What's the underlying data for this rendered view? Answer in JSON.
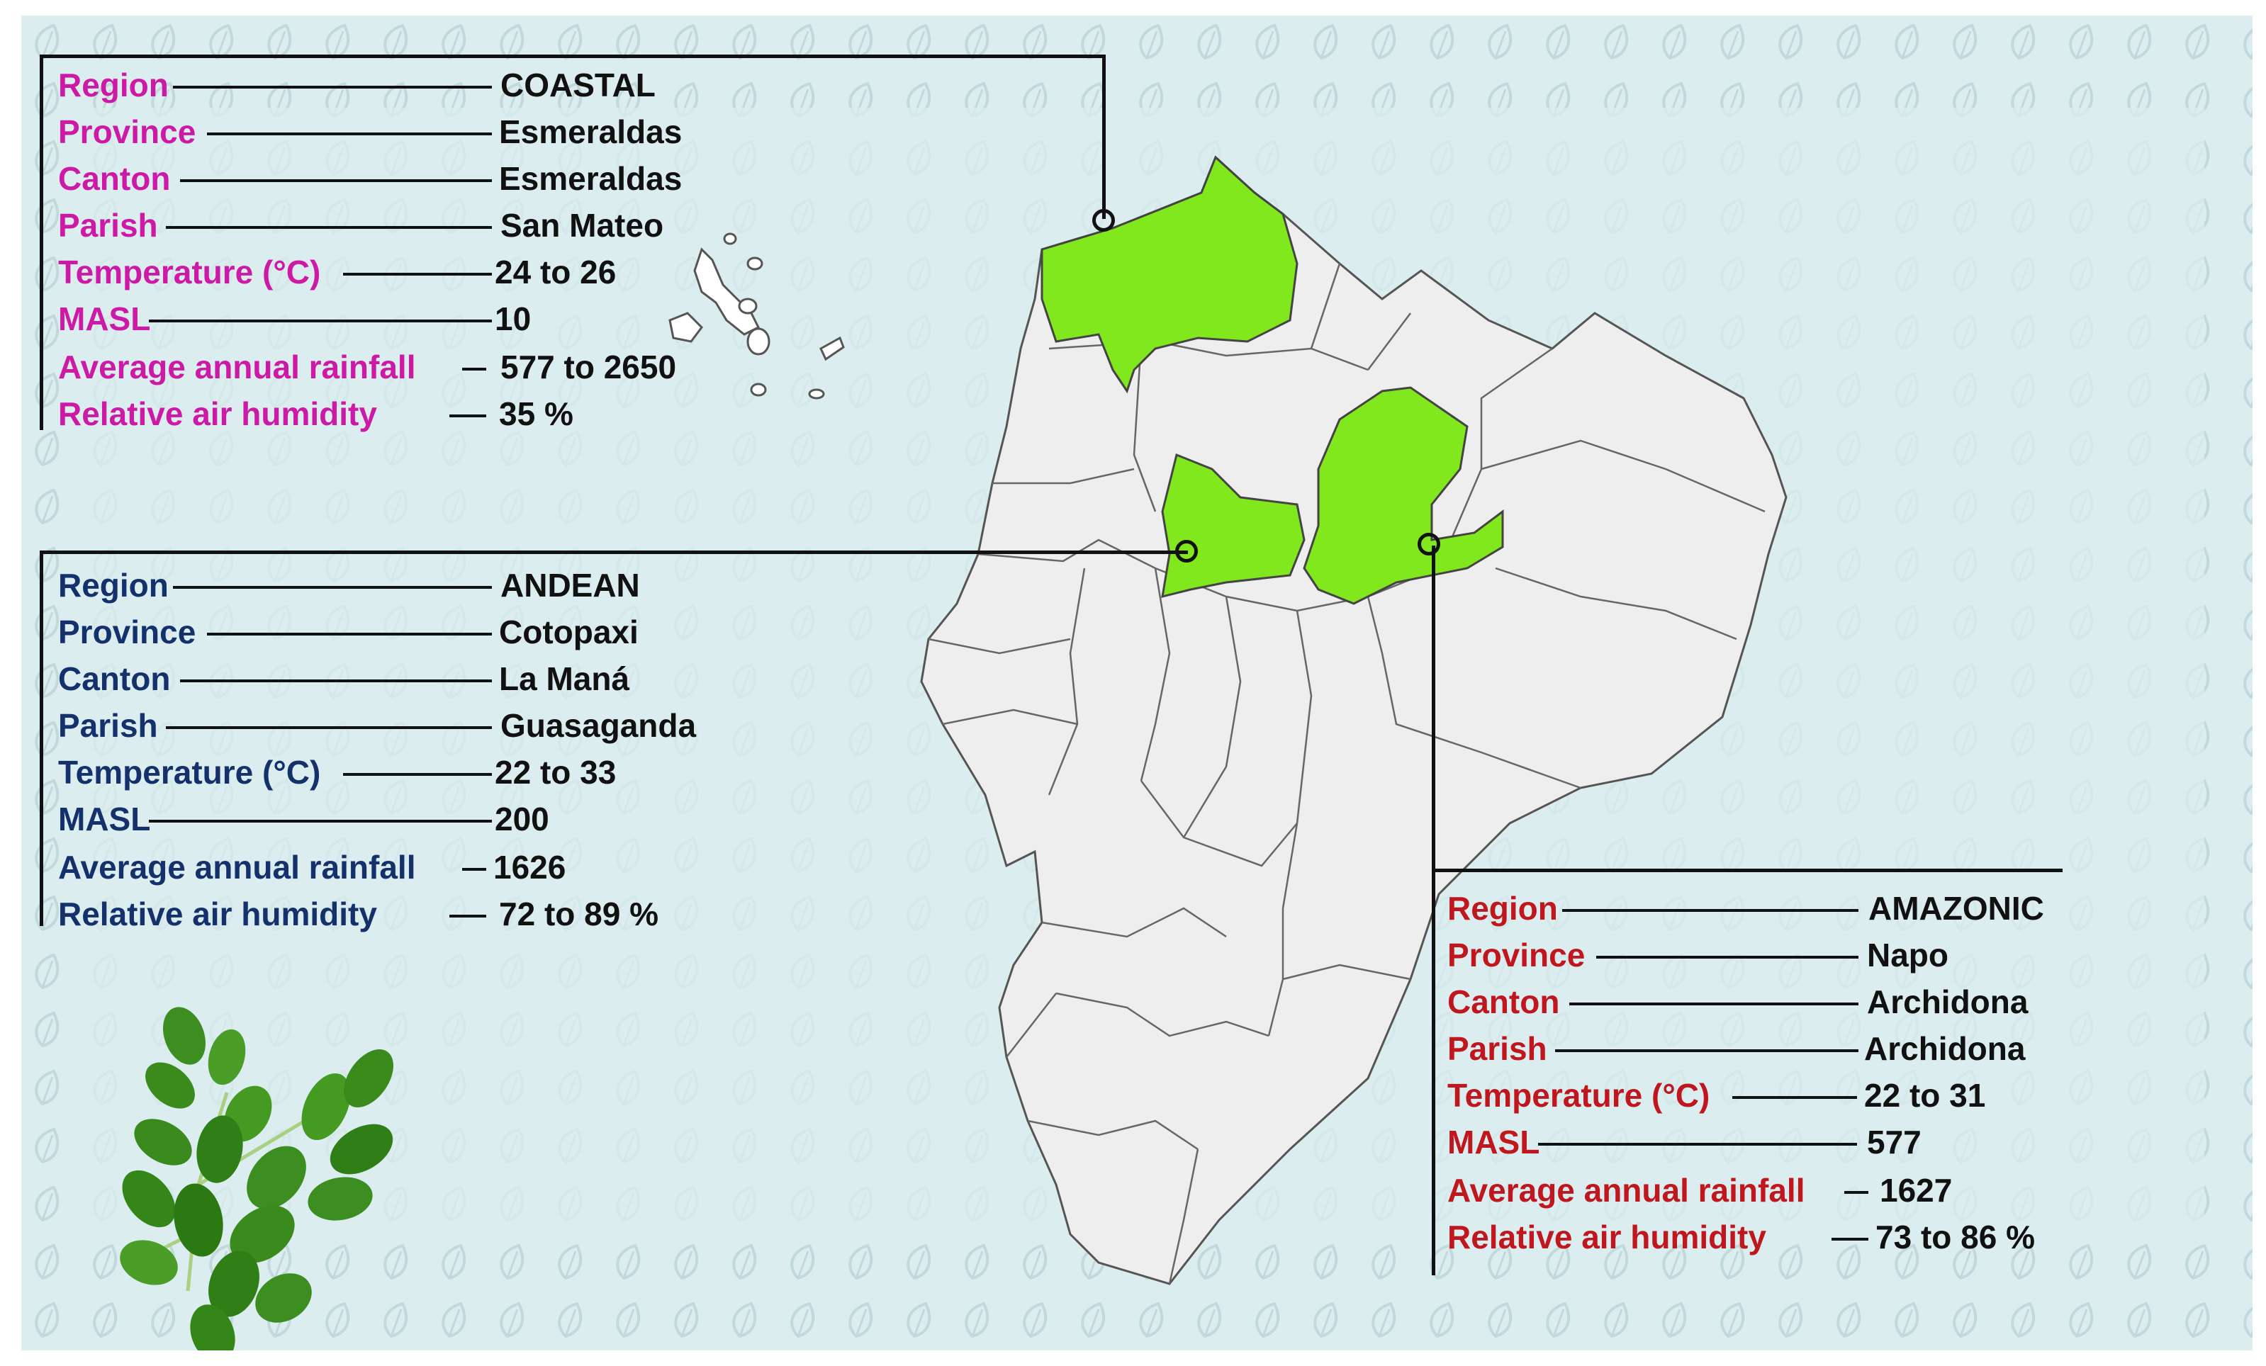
{
  "colors": {
    "background": "#dcedef",
    "leaf_pattern": "#c2d9dc",
    "map_fill": "#eeeeee",
    "map_border": "#555555",
    "highlight": "#80e81c",
    "coastal_label": "#cc1aa6",
    "andean_label": "#14316b",
    "amazonic_label": "#c0171e",
    "value_text": "#111111"
  },
  "icons": {
    "background": "leaf-pattern-icon",
    "decoration": "moringa-leaf-icon"
  },
  "panels": {
    "coastal": {
      "rows": [
        {
          "label": "Region",
          "value": "COASTAL"
        },
        {
          "label": "Province",
          "value": "Esmeraldas"
        },
        {
          "label": "Canton",
          "value": "Esmeraldas"
        },
        {
          "label": "Parish",
          "value": "San Mateo"
        },
        {
          "label": "Temperature (°C)",
          "value": "24 to 26"
        },
        {
          "label": "MASL",
          "value": "10"
        },
        {
          "label": "Average annual rainfall",
          "value": "577 to 2650"
        },
        {
          "label": "Relative air humidity",
          "value": "35 %"
        }
      ]
    },
    "andean": {
      "rows": [
        {
          "label": "Region",
          "value": "ANDEAN"
        },
        {
          "label": "Province",
          "value": "Cotopaxi"
        },
        {
          "label": "Canton",
          "value": "La Maná"
        },
        {
          "label": "Parish",
          "value": "Guasaganda"
        },
        {
          "label": "Temperature (°C)",
          "value": "22 to 33"
        },
        {
          "label": "MASL",
          "value": "200"
        },
        {
          "label": "Average annual rainfall",
          "value": "1626"
        },
        {
          "label": "Relative air humidity",
          "value": "72 to 89 %"
        }
      ]
    },
    "amazonic": {
      "rows": [
        {
          "label": "Region",
          "value": "AMAZONIC"
        },
        {
          "label": "Province",
          "value": "Napo"
        },
        {
          "label": "Canton",
          "value": "Archidona"
        },
        {
          "label": "Parish",
          "value": "Archidona"
        },
        {
          "label": "Temperature (°C)",
          "value": "22 to 31"
        },
        {
          "label": "MASL",
          "value": "577"
        },
        {
          "label": "Average annual rainfall",
          "value": "1627"
        },
        {
          "label": "Relative air humidity",
          "value": "73 to 86 %"
        }
      ]
    }
  }
}
